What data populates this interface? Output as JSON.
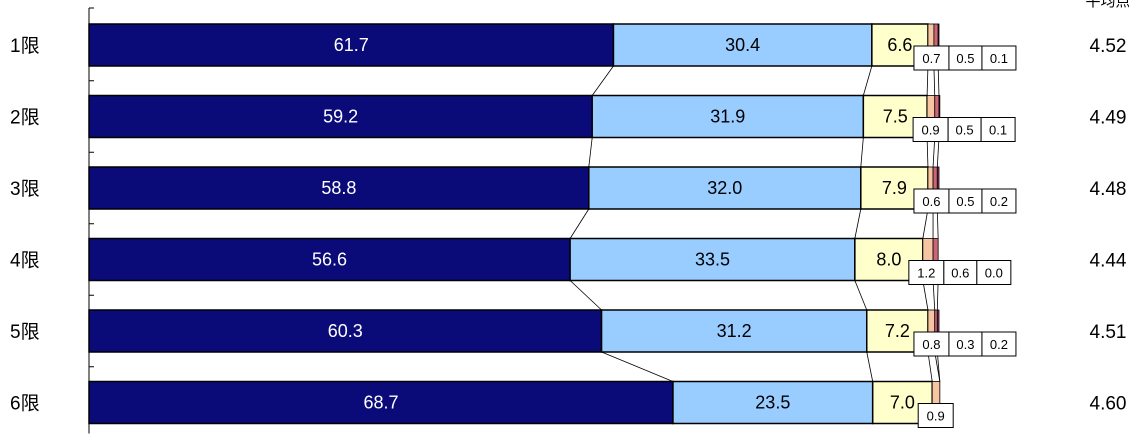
{
  "chart_data": {
    "type": "bar",
    "orientation": "horizontal",
    "stacked": "100%",
    "categories": [
      "1限",
      "2限",
      "3限",
      "4限",
      "5限",
      "6限"
    ],
    "series": [
      {
        "values": [
          61.7,
          59.2,
          58.8,
          56.6,
          60.3,
          68.7
        ]
      },
      {
        "values": [
          30.4,
          31.9,
          32.0,
          33.5,
          31.2,
          23.5
        ]
      },
      {
        "values": [
          6.6,
          7.5,
          7.9,
          8.0,
          7.2,
          7.0
        ]
      },
      {
        "values": [
          0.7,
          0.9,
          0.6,
          1.2,
          0.8,
          0.9
        ]
      },
      {
        "values": [
          0.5,
          0.5,
          0.5,
          0.6,
          0.3,
          0.0
        ]
      },
      {
        "values": [
          0.1,
          0.1,
          0.2,
          0.0,
          0.2,
          0.0
        ]
      }
    ],
    "small_labels": [
      [
        "0.7",
        "0.5",
        "0.1"
      ],
      [
        "0.9",
        "0.5",
        "0.1"
      ],
      [
        "0.6",
        "0.5",
        "0.2"
      ],
      [
        "1.2",
        "0.6",
        "0.0"
      ],
      [
        "0.8",
        "0.3",
        "0.2"
      ],
      [
        "0.9"
      ]
    ],
    "average_header": "平均点",
    "averages": [
      "4.52",
      "4.49",
      "4.48",
      "4.44",
      "4.51",
      "4.60"
    ],
    "xlim": [
      0,
      100
    ],
    "colors": [
      "#0a0a78",
      "#99ccff",
      "#ffffcc",
      "#f6c6a2",
      "#cc6677",
      "#993366"
    ],
    "series_lines": true,
    "legend": "none",
    "grid": false
  }
}
